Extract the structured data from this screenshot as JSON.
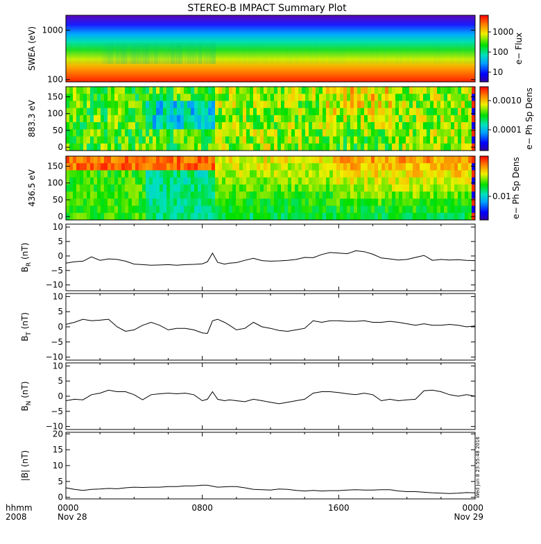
{
  "chart_data": {
    "type": "summary-plot",
    "title": "STEREO-B IMPACT Summary Plot",
    "time_axis": {
      "label_row1": "hhmm",
      "label_row2": "2008",
      "ticks": [
        {
          "hour": 0,
          "top": "0000",
          "bottom": "Nov 28"
        },
        {
          "hour": 8,
          "top": "0800",
          "bottom": ""
        },
        {
          "hour": 16,
          "top": "1600",
          "bottom": ""
        },
        {
          "hour": 24,
          "top": "0000",
          "bottom": "Nov 29"
        }
      ],
      "range_hours": [
        0,
        24
      ]
    },
    "stamp": "Wed Jun 8 23:55:48 2016",
    "spectrograms": [
      {
        "id": "swea",
        "ylabel": "SWEA (eV)",
        "yscale": "log",
        "ylim": [
          90,
          2000
        ],
        "yticks": [
          "1000",
          "100"
        ],
        "colorbar_label": "e− Flux",
        "colorbar_ticks": [
          "1000",
          "100",
          "10"
        ],
        "type": "heatmap"
      },
      {
        "id": "pad883",
        "ylabel": "883.3 eV",
        "yscale": "linear",
        "ylim": [
          -10,
          180
        ],
        "yticks": [
          "150",
          "100",
          "50",
          "0"
        ],
        "colorbar_label": "e− Ph Sp Dens",
        "colorbar_ticks": [
          "0.0010",
          "0.0001"
        ],
        "type": "heatmap"
      },
      {
        "id": "pad436",
        "ylabel": "436.5 eV",
        "yscale": "linear",
        "ylim": [
          -10,
          180
        ],
        "yticks": [
          "150",
          "100",
          "50",
          "0"
        ],
        "colorbar_label": "e− Ph Sp Dens",
        "colorbar_ticks": [
          "0.01"
        ],
        "type": "heatmap"
      }
    ],
    "line_panels": [
      {
        "id": "br",
        "ylabel_main": "B",
        "ylabel_sub": "R",
        "ylabel_unit": "(nT)",
        "ylim": [
          -12,
          11
        ],
        "yticks": [
          "10",
          "5",
          "0",
          "−5",
          "−10"
        ],
        "ytick_values": [
          10,
          5,
          0,
          -5,
          -10
        ],
        "x": [
          0,
          0.5,
          1,
          1.5,
          2,
          2.5,
          3,
          3.5,
          4,
          4.5,
          5,
          5.5,
          6,
          6.5,
          7,
          7.5,
          8,
          8.3,
          8.6,
          8.9,
          9.3,
          9.6,
          10,
          10.5,
          11,
          11.5,
          12,
          12.5,
          13,
          13.5,
          14,
          14.5,
          15,
          15.5,
          16,
          16.5,
          17,
          17.5,
          18,
          18.5,
          19,
          19.5,
          20,
          20.5,
          21,
          21.5,
          22,
          22.5,
          23,
          23.5,
          24
        ],
        "y": [
          -2.5,
          -2.0,
          -1.8,
          -0.3,
          -1.5,
          -1.0,
          -1.2,
          -1.8,
          -2.8,
          -3.0,
          -3.2,
          -3.1,
          -3.0,
          -3.2,
          -3.0,
          -2.9,
          -2.7,
          -2.0,
          1.0,
          -2.2,
          -2.8,
          -2.5,
          -2.3,
          -1.5,
          -0.8,
          -1.6,
          -1.8,
          -1.7,
          -1.5,
          -1.2,
          -0.5,
          -0.6,
          0.5,
          1.2,
          1.0,
          0.8,
          1.8,
          1.5,
          0.6,
          -0.7,
          -1.0,
          -1.4,
          -1.2,
          -0.5,
          0.2,
          -1.5,
          -1.2,
          -1.4,
          -1.3,
          -1.5,
          -1.6
        ]
      },
      {
        "id": "bt",
        "ylabel_main": "B",
        "ylabel_sub": "T",
        "ylabel_unit": "(nT)",
        "ylim": [
          -11,
          11
        ],
        "yticks": [
          "10",
          "5",
          "0",
          "−5",
          "−10"
        ],
        "ytick_values": [
          10,
          5,
          0,
          -5,
          -10
        ],
        "x": [
          0,
          0.5,
          1,
          1.5,
          2,
          2.5,
          3,
          3.5,
          4,
          4.5,
          5,
          5.5,
          6,
          6.5,
          7,
          7.5,
          8,
          8.3,
          8.6,
          8.9,
          9.3,
          9.6,
          10,
          10.5,
          11,
          11.5,
          12,
          12.5,
          13,
          13.5,
          14,
          14.5,
          15,
          15.5,
          16,
          16.5,
          17,
          17.5,
          18,
          18.5,
          19,
          19.5,
          20,
          20.5,
          21,
          21.5,
          22,
          22.5,
          23,
          23.5,
          24
        ],
        "y": [
          0.8,
          1.5,
          2.5,
          2.0,
          2.2,
          2.5,
          0.0,
          -1.5,
          -1.0,
          0.5,
          1.5,
          0.5,
          -1.0,
          -0.5,
          -0.5,
          -1.0,
          -2.0,
          -2.2,
          2.0,
          2.5,
          1.5,
          0.5,
          -1.0,
          -0.5,
          1.5,
          0.0,
          -0.5,
          -1.2,
          -1.5,
          -1.0,
          -0.5,
          2.0,
          1.5,
          2.0,
          2.0,
          1.8,
          1.8,
          2.0,
          1.5,
          1.5,
          1.8,
          1.5,
          1.0,
          0.5,
          1.0,
          0.5,
          0.5,
          0.8,
          0.5,
          0.0,
          0.3
        ]
      },
      {
        "id": "bn",
        "ylabel_main": "B",
        "ylabel_sub": "N",
        "ylabel_unit": "(nT)",
        "ylim": [
          -11,
          11
        ],
        "yticks": [
          "10",
          "5",
          "0",
          "−5",
          "−10"
        ],
        "ytick_values": [
          10,
          5,
          0,
          -5,
          -10
        ],
        "x": [
          0,
          0.5,
          1,
          1.5,
          2,
          2.5,
          3,
          3.5,
          4,
          4.5,
          5,
          5.5,
          6,
          6.5,
          7,
          7.5,
          8,
          8.3,
          8.6,
          8.9,
          9.3,
          9.6,
          10,
          10.5,
          11,
          11.5,
          12,
          12.5,
          13,
          13.5,
          14,
          14.5,
          15,
          15.5,
          16,
          16.5,
          17,
          17.5,
          18,
          18.5,
          19,
          19.5,
          20,
          20.5,
          21,
          21.5,
          22,
          22.5,
          23,
          23.5,
          24
        ],
        "y": [
          -1.5,
          -1.0,
          -1.2,
          0.5,
          1.0,
          2.0,
          1.5,
          1.5,
          0.5,
          -1.2,
          0.5,
          0.8,
          1.0,
          0.8,
          1.0,
          0.5,
          -1.5,
          -1.0,
          1.5,
          -1.0,
          -1.5,
          -1.2,
          -1.5,
          -1.8,
          -1.0,
          -1.5,
          -2.0,
          -2.5,
          -2.0,
          -1.5,
          -1.0,
          1.0,
          1.5,
          1.5,
          1.2,
          0.8,
          0.5,
          1.0,
          0.5,
          -1.5,
          -1.0,
          -1.5,
          -1.2,
          -1.0,
          1.8,
          2.0,
          1.5,
          0.5,
          0.0,
          0.5,
          0.0
        ]
      },
      {
        "id": "bmag",
        "ylabel_main": "|B|",
        "ylabel_sub": "",
        "ylabel_unit": "(nT)",
        "ylim": [
          -0.5,
          20.5
        ],
        "yticks": [
          "20",
          "15",
          "10",
          "5",
          "0"
        ],
        "ytick_values": [
          20,
          15,
          10,
          5,
          0
        ],
        "x": [
          0,
          0.5,
          1,
          1.5,
          2,
          2.5,
          3,
          3.5,
          4,
          4.5,
          5,
          5.5,
          6,
          6.5,
          7,
          7.5,
          8,
          8.3,
          8.6,
          8.9,
          9.3,
          9.6,
          10,
          10.5,
          11,
          11.5,
          12,
          12.5,
          13,
          13.5,
          14,
          14.5,
          15,
          15.5,
          16,
          16.5,
          17,
          17.5,
          18,
          18.5,
          19,
          19.5,
          20,
          20.5,
          21,
          21.5,
          22,
          22.5,
          23,
          23.5,
          24
        ],
        "y": [
          3.0,
          2.5,
          2.2,
          2.5,
          2.6,
          2.8,
          2.7,
          3.0,
          3.2,
          3.1,
          3.2,
          3.2,
          3.4,
          3.4,
          3.6,
          3.6,
          3.8,
          3.8,
          3.5,
          3.2,
          3.3,
          3.4,
          3.4,
          3.0,
          2.5,
          2.4,
          2.3,
          2.6,
          2.5,
          2.2,
          2.0,
          2.2,
          2.0,
          2.1,
          2.1,
          2.3,
          2.4,
          2.3,
          2.3,
          2.4,
          2.4,
          2.0,
          1.8,
          1.8,
          1.6,
          1.4,
          1.3,
          1.2,
          1.3,
          1.5,
          1.4
        ]
      }
    ]
  }
}
